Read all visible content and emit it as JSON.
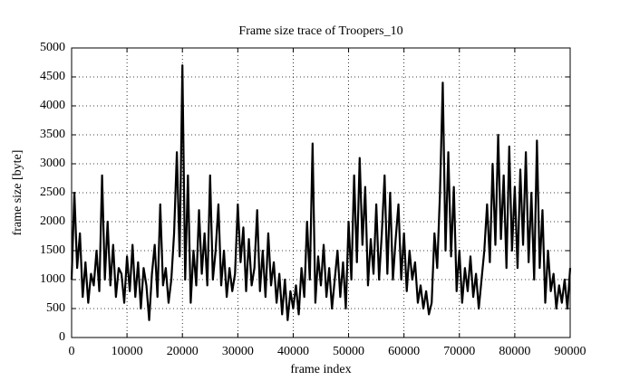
{
  "chart_data": {
    "type": "line",
    "title": "Frame size trace of Troopers_10",
    "xlabel": "frame index",
    "ylabel": "frame size [byte]",
    "x": [
      0,
      500,
      1000,
      1500,
      2000,
      2500,
      3000,
      3500,
      4000,
      4500,
      5000,
      5500,
      6000,
      6500,
      7000,
      7500,
      8000,
      8500,
      9000,
      9500,
      10000,
      10500,
      11000,
      11500,
      12000,
      12500,
      13000,
      13500,
      14000,
      14500,
      15000,
      15500,
      16000,
      16500,
      17000,
      17500,
      18000,
      18500,
      19000,
      19500,
      20000,
      20500,
      21000,
      21500,
      22000,
      22500,
      23000,
      23500,
      24000,
      24500,
      25000,
      25500,
      26000,
      26500,
      27000,
      27500,
      28000,
      28500,
      29000,
      29500,
      30000,
      30500,
      31000,
      31500,
      32000,
      32500,
      33000,
      33500,
      34000,
      34500,
      35000,
      35500,
      36000,
      36500,
      37000,
      37500,
      38000,
      38500,
      39000,
      39500,
      40000,
      40500,
      41000,
      41500,
      42000,
      42500,
      43000,
      43500,
      44000,
      44500,
      45000,
      45500,
      46000,
      46500,
      47000,
      47500,
      48000,
      48500,
      49000,
      49500,
      50000,
      50500,
      51000,
      51500,
      52000,
      52500,
      53000,
      53500,
      54000,
      54500,
      55000,
      55500,
      56000,
      56500,
      57000,
      57500,
      58000,
      58500,
      59000,
      59500,
      60000,
      60500,
      61000,
      61500,
      62000,
      62500,
      63000,
      63500,
      64000,
      64500,
      65000,
      65500,
      66000,
      66500,
      67000,
      67500,
      68000,
      68500,
      69000,
      69500,
      70000,
      70500,
      71000,
      71500,
      72000,
      72500,
      73000,
      73500,
      74000,
      74500,
      75000,
      75500,
      76000,
      76500,
      77000,
      77500,
      78000,
      78500,
      79000,
      79500,
      80000,
      80500,
      81000,
      81500,
      82000,
      82500,
      83000,
      83500,
      84000,
      84500,
      85000,
      85500,
      86000,
      86500,
      87000,
      87500,
      88000,
      88500,
      89000,
      89500,
      90000
    ],
    "series": [
      {
        "color": "#000000",
        "values": [
          1000,
          2500,
          1200,
          1800,
          700,
          1300,
          600,
          1100,
          900,
          1500,
          800,
          2800,
          1000,
          2000,
          900,
          1600,
          700,
          1200,
          1100,
          600,
          1400,
          800,
          1600,
          700,
          1300,
          500,
          1200,
          900,
          300,
          1100,
          1600,
          700,
          2300,
          900,
          1200,
          600,
          1000,
          1800,
          3200,
          1400,
          4700,
          1000,
          2800,
          600,
          1500,
          900,
          2200,
          1100,
          1800,
          900,
          2800,
          1000,
          1500,
          2300,
          900,
          1500,
          700,
          1200,
          800,
          1100,
          2300,
          1300,
          1900,
          800,
          1700,
          900,
          1200,
          2200,
          800,
          1500,
          700,
          1800,
          900,
          1300,
          600,
          1100,
          400,
          1000,
          300,
          800,
          500,
          900,
          400,
          1200,
          700,
          2000,
          1000,
          3350,
          600,
          1400,
          900,
          1600,
          700,
          1200,
          500,
          1000,
          1500,
          700,
          1300,
          500,
          2000,
          1000,
          2800,
          1300,
          3100,
          1600,
          2600,
          900,
          1700,
          1100,
          2300,
          1000,
          1800,
          2800,
          1100,
          2500,
          1000,
          1700,
          2300,
          1000,
          1800,
          800,
          1500,
          1000,
          1300,
          600,
          900,
          500,
          800,
          400,
          600,
          1800,
          1200,
          2500,
          4400,
          1500,
          3200,
          1400,
          2600,
          800,
          1500,
          600,
          1200,
          800,
          1400,
          700,
          1100,
          500,
          1000,
          1500,
          2300,
          1300,
          3000,
          1600,
          3500,
          1700,
          2800,
          1200,
          3300,
          1500,
          2600,
          1200,
          2900,
          1600,
          3200,
          1300,
          2500,
          1000,
          3400,
          1200,
          2200,
          600,
          1500,
          800,
          1100,
          500,
          900,
          600,
          1000,
          500,
          1200
        ]
      }
    ],
    "xlim": [
      0,
      90000
    ],
    "xticks": [
      0,
      10000,
      20000,
      30000,
      40000,
      50000,
      60000,
      70000,
      80000,
      90000
    ],
    "ylim": [
      0,
      5000
    ],
    "yticks": [
      0,
      500,
      1000,
      1500,
      2000,
      2500,
      3000,
      3500,
      4000,
      4500,
      5000
    ],
    "grid": true
  }
}
